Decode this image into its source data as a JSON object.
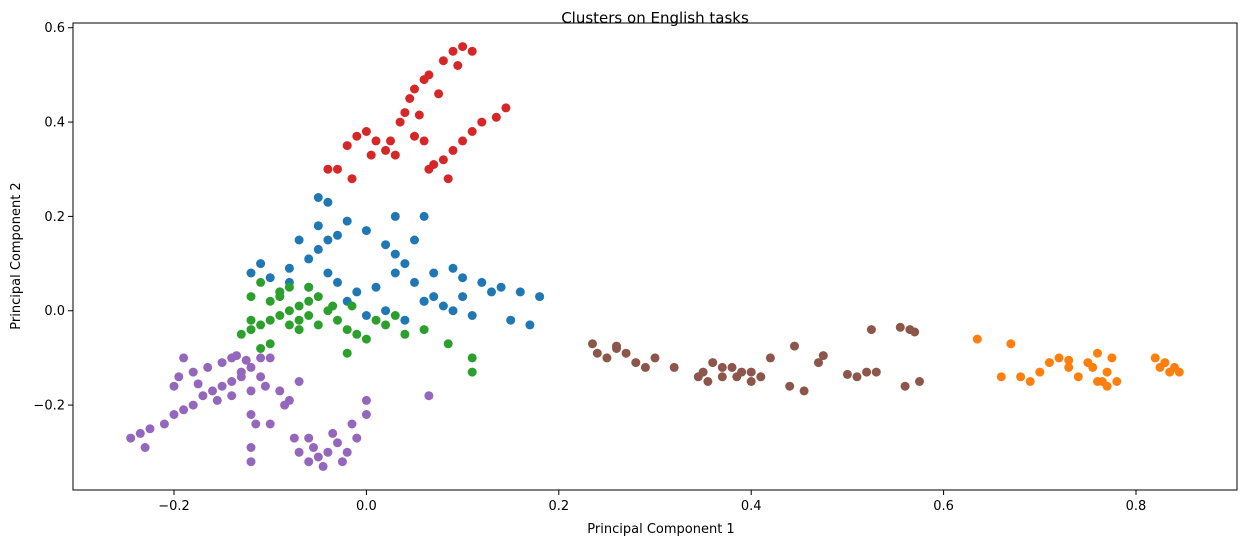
{
  "chart_data": {
    "type": "scatter",
    "title": "Clusters on English tasks",
    "xlabel": "Principal Component 1",
    "ylabel": "Principal Component 2",
    "xlim": [
      -0.305,
      0.905
    ],
    "ylim": [
      -0.38,
      0.61
    ],
    "xticks": [
      -0.2,
      0.0,
      0.2,
      0.4,
      0.6,
      0.8
    ],
    "xtick_labels": [
      "−0.2",
      "0.0",
      "0.2",
      "0.4",
      "0.6",
      "0.8"
    ],
    "yticks": [
      -0.2,
      0.0,
      0.2,
      0.4,
      0.6
    ],
    "ytick_labels": [
      "−0.2",
      "0.0",
      "0.2",
      "0.4",
      "0.6"
    ],
    "grid": false,
    "legend": "none",
    "series": [
      {
        "color": "#1f77b4",
        "points": [
          [
            -0.1,
            0.07
          ],
          [
            -0.08,
            0.09
          ],
          [
            -0.06,
            0.11
          ],
          [
            -0.05,
            0.13
          ],
          [
            -0.04,
            0.15
          ],
          [
            -0.05,
            0.18
          ],
          [
            -0.03,
            0.16
          ],
          [
            -0.05,
            0.24
          ],
          [
            -0.04,
            0.23
          ],
          [
            -0.02,
            0.19
          ],
          [
            0.0,
            0.17
          ],
          [
            0.02,
            0.14
          ],
          [
            0.03,
            0.12
          ],
          [
            0.04,
            0.1
          ],
          [
            0.06,
            0.2
          ],
          [
            0.05,
            0.15
          ],
          [
            0.07,
            0.08
          ],
          [
            0.1,
            0.07
          ],
          [
            0.12,
            0.06
          ],
          [
            0.14,
            0.05
          ],
          [
            0.16,
            0.04
          ],
          [
            0.18,
            0.03
          ],
          [
            0.17,
            -0.03
          ],
          [
            0.15,
            -0.02
          ],
          [
            0.11,
            -0.01
          ],
          [
            0.09,
            0.0
          ],
          [
            0.07,
            0.03
          ],
          [
            0.05,
            0.06
          ],
          [
            0.03,
            0.08
          ],
          [
            0.01,
            0.05
          ],
          [
            -0.01,
            0.04
          ],
          [
            -0.03,
            0.06
          ],
          [
            -0.06,
            0.05
          ],
          [
            -0.08,
            0.06
          ],
          [
            -0.09,
            0.04
          ],
          [
            -0.11,
            0.1
          ],
          [
            -0.12,
            0.08
          ],
          [
            -0.07,
            0.15
          ],
          [
            -0.02,
            0.02
          ],
          [
            0.0,
            -0.01
          ],
          [
            0.02,
            0.0
          ],
          [
            0.04,
            -0.02
          ],
          [
            0.06,
            0.02
          ],
          [
            0.08,
            0.01
          ],
          [
            0.1,
            0.03
          ],
          [
            0.13,
            0.04
          ],
          [
            0.09,
            0.09
          ],
          [
            0.03,
            0.2
          ],
          [
            0.06,
            0.02
          ],
          [
            -0.04,
            0.08
          ]
        ]
      },
      {
        "color": "#ff7f0e",
        "points": [
          [
            0.635,
            -0.06
          ],
          [
            0.67,
            -0.07
          ],
          [
            0.66,
            -0.14
          ],
          [
            0.68,
            -0.14
          ],
          [
            0.69,
            -0.15
          ],
          [
            0.7,
            -0.13
          ],
          [
            0.71,
            -0.11
          ],
          [
            0.72,
            -0.1
          ],
          [
            0.73,
            -0.12
          ],
          [
            0.74,
            -0.14
          ],
          [
            0.75,
            -0.11
          ],
          [
            0.76,
            -0.09
          ],
          [
            0.765,
            -0.15
          ],
          [
            0.77,
            -0.13
          ],
          [
            0.775,
            -0.1
          ],
          [
            0.78,
            -0.15
          ],
          [
            0.77,
            -0.16
          ],
          [
            0.76,
            -0.15
          ],
          [
            0.82,
            -0.1
          ],
          [
            0.825,
            -0.12
          ],
          [
            0.83,
            -0.11
          ],
          [
            0.835,
            -0.13
          ],
          [
            0.84,
            -0.12
          ],
          [
            0.845,
            -0.13
          ],
          [
            0.73,
            -0.105
          ],
          [
            0.755,
            -0.12
          ]
        ]
      },
      {
        "color": "#2ca02c",
        "points": [
          [
            -0.13,
            -0.05
          ],
          [
            -0.12,
            -0.04
          ],
          [
            -0.11,
            -0.03
          ],
          [
            -0.1,
            -0.02
          ],
          [
            -0.09,
            -0.01
          ],
          [
            -0.08,
            0.0
          ],
          [
            -0.07,
            0.01
          ],
          [
            -0.06,
            0.02
          ],
          [
            -0.05,
            0.03
          ],
          [
            -0.04,
            0.0
          ],
          [
            -0.03,
            -0.02
          ],
          [
            -0.02,
            -0.04
          ],
          [
            -0.01,
            -0.05
          ],
          [
            0.0,
            -0.06
          ],
          [
            0.02,
            -0.03
          ],
          [
            0.04,
            -0.05
          ],
          [
            0.06,
            -0.04
          ],
          [
            0.085,
            -0.07
          ],
          [
            0.11,
            -0.1
          ],
          [
            0.11,
            -0.13
          ],
          [
            -0.1,
            -0.07
          ],
          [
            -0.11,
            -0.08
          ],
          [
            -0.09,
            0.04
          ],
          [
            -0.11,
            0.06
          ],
          [
            -0.08,
            0.05
          ],
          [
            -0.06,
            0.05
          ],
          [
            -0.12,
            0.03
          ],
          [
            -0.07,
            -0.04
          ],
          [
            -0.05,
            -0.03
          ],
          [
            -0.035,
            0.01
          ],
          [
            -0.015,
            0.01
          ],
          [
            0.01,
            -0.02
          ],
          [
            0.03,
            -0.01
          ],
          [
            -0.02,
            -0.09
          ],
          [
            -0.09,
            0.03
          ],
          [
            -0.07,
            -0.02
          ],
          [
            -0.1,
            0.02
          ],
          [
            -0.06,
            -0.01
          ],
          [
            -0.08,
            -0.03
          ],
          [
            -0.12,
            -0.02
          ]
        ]
      },
      {
        "color": "#d62728",
        "points": [
          [
            -0.03,
            0.3
          ],
          [
            -0.02,
            0.35
          ],
          [
            -0.01,
            0.37
          ],
          [
            0.0,
            0.38
          ],
          [
            0.01,
            0.36
          ],
          [
            0.02,
            0.34
          ],
          [
            0.03,
            0.33
          ],
          [
            0.035,
            0.4
          ],
          [
            0.04,
            0.42
          ],
          [
            0.045,
            0.45
          ],
          [
            0.05,
            0.47
          ],
          [
            0.06,
            0.49
          ],
          [
            0.065,
            0.5
          ],
          [
            0.08,
            0.53
          ],
          [
            0.09,
            0.55
          ],
          [
            0.1,
            0.56
          ],
          [
            0.11,
            0.55
          ],
          [
            0.07,
            0.31
          ],
          [
            0.08,
            0.32
          ],
          [
            0.09,
            0.34
          ],
          [
            0.1,
            0.36
          ],
          [
            0.11,
            0.38
          ],
          [
            0.12,
            0.4
          ],
          [
            0.135,
            0.41
          ],
          [
            0.145,
            0.43
          ],
          [
            0.05,
            0.37
          ],
          [
            0.06,
            0.36
          ],
          [
            -0.04,
            0.3
          ],
          [
            -0.015,
            0.28
          ],
          [
            0.005,
            0.33
          ],
          [
            0.025,
            0.36
          ],
          [
            0.055,
            0.415
          ],
          [
            0.075,
            0.46
          ],
          [
            0.095,
            0.52
          ],
          [
            0.065,
            0.3
          ],
          [
            0.085,
            0.28
          ]
        ]
      },
      {
        "color": "#9467bd",
        "points": [
          [
            -0.245,
            -0.27
          ],
          [
            -0.235,
            -0.26
          ],
          [
            -0.23,
            -0.29
          ],
          [
            -0.225,
            -0.25
          ],
          [
            -0.21,
            -0.24
          ],
          [
            -0.2,
            -0.22
          ],
          [
            -0.19,
            -0.21
          ],
          [
            -0.18,
            -0.2
          ],
          [
            -0.17,
            -0.18
          ],
          [
            -0.16,
            -0.17
          ],
          [
            -0.15,
            -0.16
          ],
          [
            -0.14,
            -0.15
          ],
          [
            -0.13,
            -0.14
          ],
          [
            -0.12,
            -0.12
          ],
          [
            -0.11,
            -0.1
          ],
          [
            -0.1,
            -0.1
          ],
          [
            -0.195,
            -0.14
          ],
          [
            -0.18,
            -0.13
          ],
          [
            -0.165,
            -0.12
          ],
          [
            -0.15,
            -0.11
          ],
          [
            -0.14,
            -0.1
          ],
          [
            -0.13,
            -0.13
          ],
          [
            -0.12,
            -0.17
          ],
          [
            -0.12,
            -0.22
          ],
          [
            -0.115,
            -0.24
          ],
          [
            -0.12,
            -0.29
          ],
          [
            -0.12,
            -0.32
          ],
          [
            -0.1,
            -0.24
          ],
          [
            -0.085,
            -0.2
          ],
          [
            -0.07,
            -0.15
          ],
          [
            -0.06,
            -0.27
          ],
          [
            -0.055,
            -0.29
          ],
          [
            -0.05,
            -0.31
          ],
          [
            -0.045,
            -0.33
          ],
          [
            -0.04,
            -0.3
          ],
          [
            -0.03,
            -0.28
          ],
          [
            -0.015,
            -0.24
          ],
          [
            -0.01,
            -0.27
          ],
          [
            0.0,
            -0.22
          ],
          [
            0.0,
            -0.19
          ],
          [
            -0.02,
            -0.3
          ],
          [
            -0.025,
            -0.32
          ],
          [
            -0.07,
            -0.3
          ],
          [
            -0.06,
            -0.32
          ],
          [
            -0.035,
            -0.26
          ],
          [
            -0.075,
            -0.27
          ],
          [
            -0.09,
            -0.17
          ],
          [
            -0.11,
            -0.14
          ],
          [
            -0.125,
            -0.105
          ],
          [
            -0.135,
            -0.095
          ],
          [
            0.065,
            -0.18
          ],
          [
            -0.19,
            -0.1
          ],
          [
            -0.175,
            -0.155
          ],
          [
            -0.155,
            -0.19
          ],
          [
            -0.14,
            -0.18
          ],
          [
            -0.105,
            -0.16
          ],
          [
            -0.08,
            -0.19
          ],
          [
            -0.2,
            -0.16
          ]
        ]
      },
      {
        "color": "#8c564b",
        "points": [
          [
            0.235,
            -0.07
          ],
          [
            0.24,
            -0.09
          ],
          [
            0.25,
            -0.1
          ],
          [
            0.26,
            -0.08
          ],
          [
            0.27,
            -0.09
          ],
          [
            0.28,
            -0.11
          ],
          [
            0.29,
            -0.12
          ],
          [
            0.3,
            -0.1
          ],
          [
            0.32,
            -0.12
          ],
          [
            0.35,
            -0.13
          ],
          [
            0.36,
            -0.11
          ],
          [
            0.37,
            -0.12
          ],
          [
            0.38,
            -0.12
          ],
          [
            0.385,
            -0.14
          ],
          [
            0.39,
            -0.13
          ],
          [
            0.4,
            -0.15
          ],
          [
            0.41,
            -0.14
          ],
          [
            0.42,
            -0.1
          ],
          [
            0.44,
            -0.16
          ],
          [
            0.445,
            -0.075
          ],
          [
            0.455,
            -0.17
          ],
          [
            0.47,
            -0.11
          ],
          [
            0.475,
            -0.095
          ],
          [
            0.5,
            -0.135
          ],
          [
            0.51,
            -0.14
          ],
          [
            0.52,
            -0.13
          ],
          [
            0.525,
            -0.04
          ],
          [
            0.53,
            -0.13
          ],
          [
            0.555,
            -0.035
          ],
          [
            0.56,
            -0.16
          ],
          [
            0.565,
            -0.04
          ],
          [
            0.57,
            -0.045
          ],
          [
            0.575,
            -0.15
          ],
          [
            0.355,
            -0.15
          ],
          [
            0.37,
            -0.14
          ],
          [
            0.4,
            -0.13
          ],
          [
            0.26,
            -0.075
          ],
          [
            0.345,
            -0.14
          ]
        ]
      }
    ]
  }
}
